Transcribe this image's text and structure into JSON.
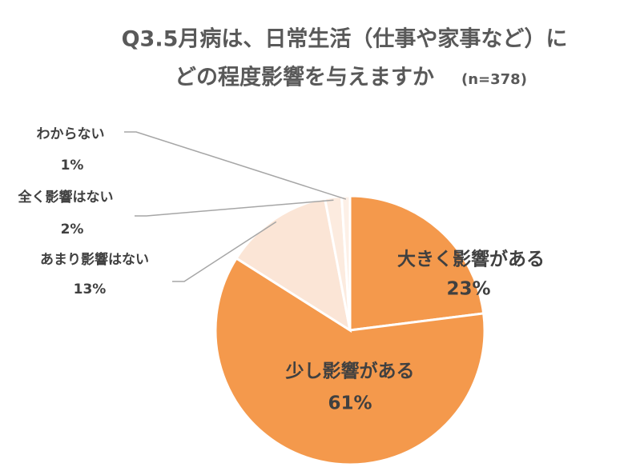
{
  "chart_data": {
    "type": "pie",
    "title": [
      "Q3.5月病は、日常生活（仕事や家事など）に",
      "どの程度影響を与えますか"
    ],
    "sample_size_label": "(n=378)",
    "categories": [
      "大きく影響がある",
      "少し影響がある",
      "あまり影響はない",
      "全く影響はない",
      "わからない"
    ],
    "values": [
      23,
      61,
      13,
      2,
      1
    ],
    "value_labels": [
      "23%",
      "61%",
      "13%",
      "2%",
      "1%"
    ],
    "colors": [
      "#f4994c",
      "#f4994c",
      "#fbe5d6",
      "#fcebdf",
      "#fdf0e7"
    ],
    "start_angle": 90,
    "direction": "clockwise"
  }
}
